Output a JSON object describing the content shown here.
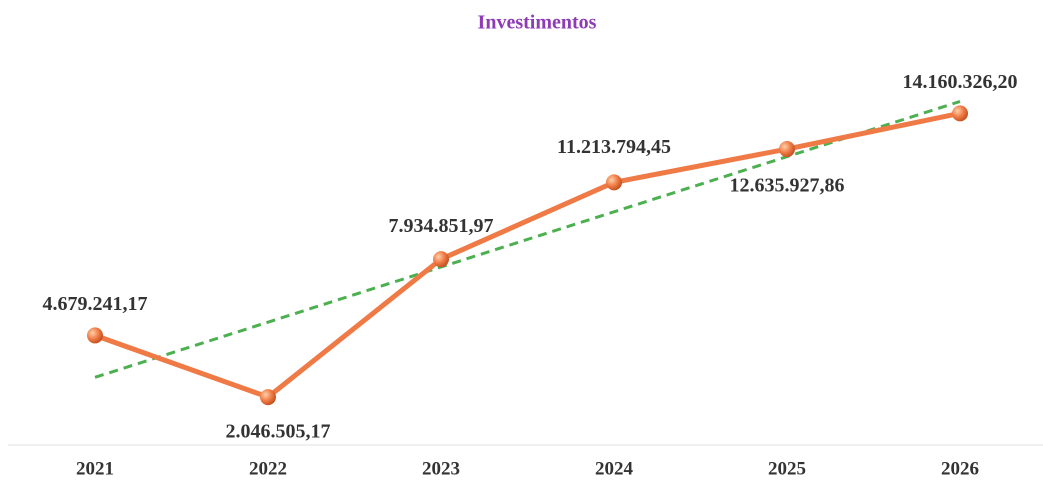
{
  "chart_data": {
    "type": "line",
    "title": "Investimentos",
    "categories": [
      "2021",
      "2022",
      "2023",
      "2024",
      "2025",
      "2026"
    ],
    "series": [
      {
        "name": "Investimentos",
        "color": "#f07a45",
        "values": [
          4679241.17,
          2046505.17,
          7934851.97,
          11213794.45,
          12635927.86,
          14160326.2
        ],
        "value_labels": [
          "4.679.241,17",
          "2.046.505,17",
          "7.934.851,97",
          "11.213.794,45",
          "12.635.927,86",
          "14.160.326,20"
        ]
      }
    ],
    "ylim": [
      0,
      19000000
    ],
    "trendline": {
      "type": "linear",
      "color": "#4caf50"
    },
    "title_color": "#8e3bb5"
  }
}
